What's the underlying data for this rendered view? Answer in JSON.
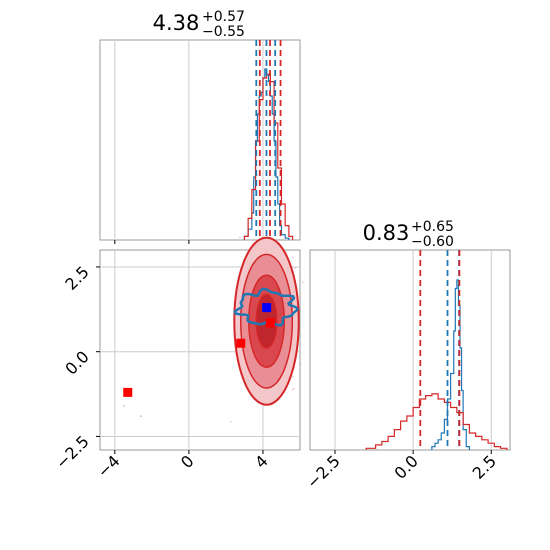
{
  "chart_data": [
    {
      "type": "histogram",
      "panel": "top-left marginal",
      "title": {
        "value": "4.38",
        "upper": "+0.57",
        "lower": "−0.55"
      },
      "xlim": [
        -4.8,
        6.0
      ],
      "grid": true,
      "xticks_labeled": false,
      "series": [
        {
          "color": "#1f77b4",
          "bin_edges": [
            3.0,
            3.2,
            3.4,
            3.5,
            3.6,
            3.7,
            3.8,
            3.9,
            4.0,
            4.1,
            4.2,
            4.3,
            4.4,
            4.5,
            4.6,
            4.7,
            4.8,
            4.9,
            5.0,
            5.2,
            5.4
          ],
          "counts": [
            0.02,
            0.06,
            0.15,
            0.35,
            0.55,
            0.7,
            0.8,
            0.82,
            0.9,
            0.95,
            0.92,
            0.88,
            0.8,
            0.7,
            0.55,
            0.35,
            0.2,
            0.08,
            0.03,
            0.01
          ],
          "quantile_lines": [
            3.64,
            4.19,
            4.66
          ]
        },
        {
          "color": "#d62728",
          "bin_edges": [
            3.0,
            3.2,
            3.4,
            3.6,
            3.8,
            4.0,
            4.2,
            4.4,
            4.6,
            4.8,
            5.0,
            5.2,
            5.4,
            5.6
          ],
          "counts": [
            0.02,
            0.12,
            0.28,
            0.55,
            0.78,
            0.9,
            0.92,
            0.88,
            0.65,
            0.4,
            0.2,
            0.08,
            0.02
          ],
          "quantile_lines": [
            3.83,
            4.38,
            4.95
          ]
        }
      ]
    },
    {
      "type": "scatter",
      "panel": "bottom-left joint",
      "xlim": [
        -4.8,
        6.0
      ],
      "ylim": [
        -2.9,
        3.0
      ],
      "xticks": [
        "−4",
        "0",
        "4"
      ],
      "yticks": [
        "2.5",
        "0.0",
        "−2.5"
      ],
      "grid": true,
      "blue_contour": {
        "color": "#1f77b4",
        "center": [
          4.2,
          1.3
        ],
        "spread": [
          1.0,
          0.3
        ]
      },
      "red_contour": {
        "color": "#d62728",
        "center": [
          4.3,
          0.9
        ],
        "spread": [
          1.2,
          1.7
        ]
      },
      "markers": [
        {
          "color": "#ff0000",
          "x": -3.3,
          "y": -1.2
        },
        {
          "color": "#ff0000",
          "x": 2.8,
          "y": 0.25
        },
        {
          "color": "#ff0000",
          "x": 4.4,
          "y": 0.85
        },
        {
          "color": "#0000ff",
          "x": 4.2,
          "y": 1.3
        }
      ]
    },
    {
      "type": "histogram",
      "panel": "bottom-right marginal",
      "title": {
        "value": "0.83",
        "upper": "+0.65",
        "lower": "−0.60"
      },
      "xlim": [
        -3.3,
        3.1
      ],
      "xticks": [
        "−2.5",
        "0.0",
        "2.5"
      ],
      "grid": true,
      "series": [
        {
          "color": "#1f77b4",
          "bin_edges": [
            0.6,
            0.7,
            0.8,
            0.9,
            1.0,
            1.1,
            1.2,
            1.3,
            1.35,
            1.4,
            1.45,
            1.5,
            1.55,
            1.6,
            1.7,
            1.8
          ],
          "counts": [
            0.02,
            0.04,
            0.06,
            0.1,
            0.18,
            0.3,
            0.45,
            0.7,
            0.95,
            1.0,
            0.85,
            0.6,
            0.35,
            0.12,
            0.02
          ],
          "quantile_lines": [
            1.1,
            1.47
          ]
        },
        {
          "color": "#d62728",
          "bin_edges": [
            -1.5,
            -1.2,
            -1.0,
            -0.8,
            -0.6,
            -0.4,
            -0.2,
            0.0,
            0.2,
            0.4,
            0.6,
            0.8,
            1.0,
            1.2,
            1.4,
            1.6,
            1.8,
            2.0,
            2.2,
            2.4,
            2.6,
            2.8,
            3.0
          ],
          "counts": [
            0.01,
            0.03,
            0.05,
            0.08,
            0.12,
            0.17,
            0.2,
            0.25,
            0.3,
            0.32,
            0.33,
            0.3,
            0.28,
            0.25,
            0.22,
            0.15,
            0.1,
            0.08,
            0.06,
            0.04,
            0.02,
            0.01
          ],
          "quantile_lines": [
            0.23,
            1.48
          ]
        }
      ]
    }
  ]
}
